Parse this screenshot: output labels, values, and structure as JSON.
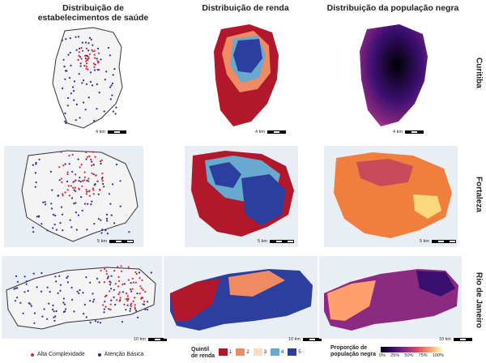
{
  "columns": {
    "health": "Distribuição de\nestabelecimentos de saúde",
    "income": "Distribuição de renda",
    "black": "Distribuição da população negra"
  },
  "cities": [
    "Curitiba",
    "Fortaleza",
    "Rio de Janeiro"
  ],
  "scales": {
    "curitiba": "4 km",
    "fortaleza": "5 km",
    "rio": "10 km"
  },
  "legend_health": {
    "high": "Alta Complexidade",
    "basic": "Atenção Básica",
    "colors": {
      "high": "#d7263d",
      "basic": "#2b2e8f"
    }
  },
  "legend_income": {
    "title": "Quintil\nde renda",
    "items": [
      {
        "label": "1",
        "color": "#b2182b"
      },
      {
        "label": "2",
        "color": "#ef8a62"
      },
      {
        "label": "3",
        "color": "#fddbc7"
      },
      {
        "label": "4",
        "color": "#67a9cf"
      },
      {
        "label": "5",
        "color": "#2c3e9e"
      }
    ]
  },
  "legend_black": {
    "title": "Proporção de\npopulação negra",
    "ticks": [
      "0%",
      "25%",
      "50%",
      "75%",
      "100%"
    ]
  }
}
